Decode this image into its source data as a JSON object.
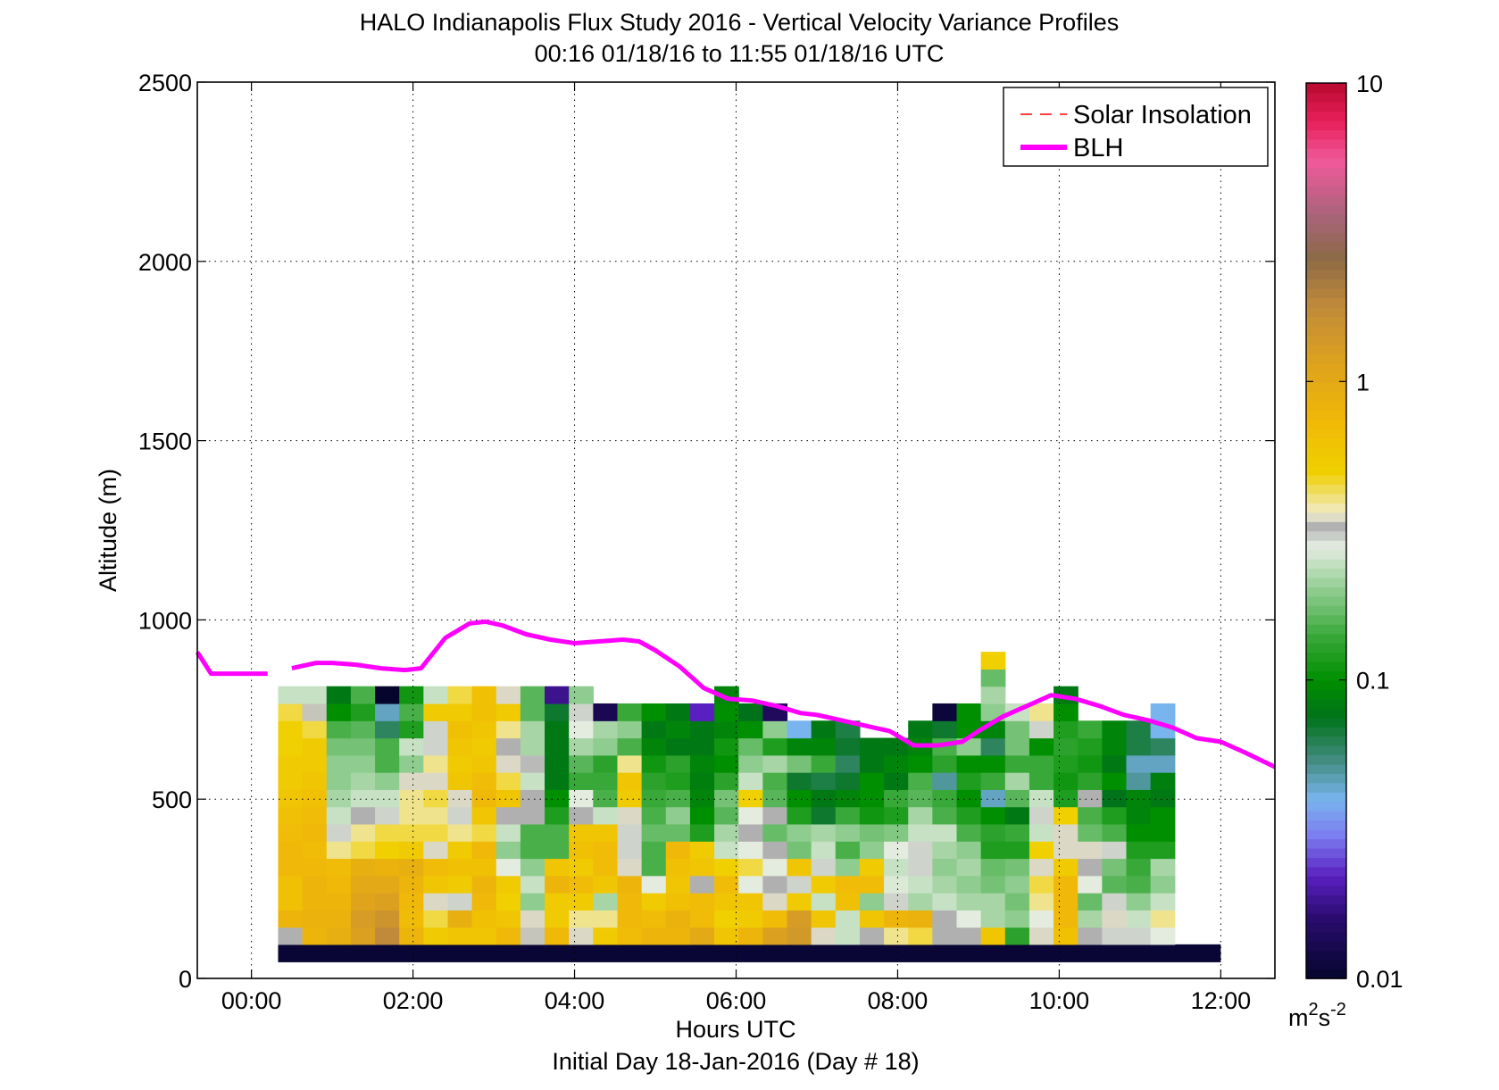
{
  "chart_data": {
    "type": "heatmap",
    "title": "HALO Indianapolis Flux Study 2016 - Vertical Velocity Variance Profiles",
    "subtitle": "00:16 01/18/16 to 11:55 01/18/16  UTC",
    "xlabel": "Hours UTC",
    "xlabel2": "Initial Day 18-Jan-2016 (Day # 18)",
    "ylabel": "Altitude (m)",
    "xlim": [
      -0.67,
      12.67
    ],
    "ylim": [
      0,
      2500
    ],
    "x_ticks": [
      {
        "value": 0,
        "label": "00:00"
      },
      {
        "value": 2,
        "label": "02:00"
      },
      {
        "value": 4,
        "label": "04:00"
      },
      {
        "value": 6,
        "label": "06:00"
      },
      {
        "value": 8,
        "label": "08:00"
      },
      {
        "value": 10,
        "label": "10:00"
      },
      {
        "value": 12,
        "label": "12:00"
      }
    ],
    "y_ticks": [
      {
        "value": 0,
        "label": "0"
      },
      {
        "value": 500,
        "label": "500"
      },
      {
        "value": 1000,
        "label": "1000"
      },
      {
        "value": 1500,
        "label": "1500"
      },
      {
        "value": 2000,
        "label": "2000"
      },
      {
        "value": 2500,
        "label": "2500"
      }
    ],
    "grid": true,
    "legend_position": "top-right",
    "legend": [
      {
        "label": "Solar Insolation",
        "color": "#ff0000",
        "style": "dashed"
      },
      {
        "label": "BLH",
        "color": "#ff00ff",
        "style": "solid"
      }
    ],
    "colorbar": {
      "scale": "log",
      "range": [
        0.01,
        10
      ],
      "ticks": [
        {
          "value": 0.01,
          "label": "0.01"
        },
        {
          "value": 0.1,
          "label": "0.1"
        },
        {
          "value": 1,
          "label": "1"
        },
        {
          "value": 10,
          "label": "10"
        }
      ],
      "unit_base": "m",
      "unit_sup1": "2",
      "unit_mid": "s",
      "unit_sup2": "-2",
      "stops": [
        {
          "v": 0.01,
          "c": "#05052e"
        },
        {
          "v": 0.016,
          "c": "#2a0c6e"
        },
        {
          "v": 0.022,
          "c": "#5a1fc0"
        },
        {
          "v": 0.03,
          "c": "#7c7cf0"
        },
        {
          "v": 0.04,
          "c": "#78b4ee"
        },
        {
          "v": 0.055,
          "c": "#3f8a7a"
        },
        {
          "v": 0.075,
          "c": "#00731a"
        },
        {
          "v": 0.1,
          "c": "#008f00"
        },
        {
          "v": 0.14,
          "c": "#38a838"
        },
        {
          "v": 0.2,
          "c": "#8fcc8f"
        },
        {
          "v": 0.28,
          "c": "#e4ece0"
        },
        {
          "v": 0.33,
          "c": "#b0b0b0"
        },
        {
          "v": 0.36,
          "c": "#f0eccf"
        },
        {
          "v": 0.5,
          "c": "#f0d000"
        },
        {
          "v": 0.75,
          "c": "#f0b808"
        },
        {
          "v": 1.2,
          "c": "#dca020"
        },
        {
          "v": 1.8,
          "c": "#c08a3a"
        },
        {
          "v": 2.6,
          "c": "#8c6a46"
        },
        {
          "v": 3.6,
          "c": "#a8647a"
        },
        {
          "v": 5.5,
          "c": "#f05a9a"
        },
        {
          "v": 7.5,
          "c": "#e81e5a"
        },
        {
          "v": 10,
          "c": "#b80a30"
        }
      ]
    },
    "heatmap": {
      "x_start": 0.33,
      "column_width": 0.3,
      "y_start": 95,
      "row_height": 48,
      "value_unit": "m2 s-2",
      "floor_band": {
        "y0": 45,
        "y1": 95,
        "x0": 0.33,
        "x1": 12,
        "value": 0.0105
      },
      "columns": [
        [
          0.33,
          0.8,
          0.65,
          0.65,
          0.75,
          0.75,
          0.7,
          0.65,
          0.6,
          0.55,
          0.55,
          0.5,
          0.5,
          0.45,
          0.25
        ],
        [
          0.8,
          0.85,
          0.8,
          0.8,
          0.75,
          0.7,
          0.75,
          0.7,
          0.65,
          0.6,
          0.55,
          0.55,
          0.45,
          0.34,
          0.25
        ],
        [
          0.9,
          0.85,
          0.8,
          0.75,
          0.7,
          0.4,
          0.3,
          0.25,
          0.22,
          0.2,
          0.2,
          0.18,
          0.15,
          0.1,
          0.08
        ],
        [
          1.2,
          1.3,
          1.1,
          1.0,
          0.9,
          0.45,
          0.4,
          0.33,
          0.25,
          0.22,
          0.2,
          0.18,
          0.16,
          0.12,
          0.15
        ],
        [
          1.8,
          1.5,
          1.2,
          1.0,
          0.85,
          0.5,
          0.45,
          0.3,
          0.25,
          0.2,
          0.15,
          0.15,
          0.06,
          0.045,
          0.009
        ],
        [
          0.8,
          0.7,
          0.75,
          0.8,
          0.9,
          0.55,
          0.45,
          0.4,
          0.4,
          0.35,
          0.2,
          0.25,
          0.12,
          0.15,
          0.11
        ],
        [
          0.55,
          0.45,
          0.35,
          0.6,
          0.7,
          0.35,
          0.45,
          0.4,
          0.45,
          0.35,
          0.4,
          0.3,
          0.3,
          0.55,
          0.25
        ],
        [
          0.6,
          0.9,
          0.3,
          0.55,
          0.65,
          0.55,
          0.4,
          0.3,
          0.35,
          0.6,
          0.55,
          0.6,
          0.65,
          0.55,
          0.45
        ],
        [
          0.6,
          0.65,
          0.75,
          0.8,
          0.65,
          0.75,
          0.45,
          0.6,
          0.75,
          0.7,
          0.6,
          0.55,
          0.6,
          0.65,
          0.65
        ],
        [
          0.75,
          0.6,
          0.5,
          0.55,
          0.28,
          0.2,
          0.25,
          0.33,
          0.6,
          0.45,
          0.35,
          0.33,
          0.4,
          0.55,
          0.35
        ],
        [
          0.34,
          0.35,
          0.2,
          0.25,
          0.2,
          0.15,
          0.15,
          0.33,
          0.33,
          0.25,
          0.32,
          0.22,
          0.22,
          0.16,
          0.16
        ],
        [
          0.75,
          0.55,
          0.55,
          0.8,
          0.6,
          0.15,
          0.15,
          0.12,
          0.1,
          0.08,
          0.08,
          0.08,
          0.08,
          0.07,
          0.018
        ],
        [
          0.35,
          0.4,
          0.55,
          0.7,
          0.55,
          0.65,
          0.6,
          0.33,
          0.28,
          0.14,
          0.16,
          0.22,
          0.28,
          0.3,
          0.2
        ],
        [
          0.55,
          0.4,
          0.22,
          0.6,
          0.7,
          0.7,
          0.6,
          0.25,
          0.15,
          0.14,
          0.13,
          0.2,
          0.22,
          0.013
        ],
        [
          0.7,
          0.75,
          0.75,
          0.8,
          0.35,
          0.3,
          0.3,
          0.35,
          0.55,
          0.6,
          0.4,
          0.15,
          0.2,
          0.14
        ],
        [
          0.8,
          0.7,
          0.55,
          0.28,
          0.15,
          0.15,
          0.17,
          0.15,
          0.14,
          0.13,
          0.11,
          0.09,
          0.08,
          0.1
        ],
        [
          0.8,
          0.85,
          0.65,
          0.6,
          0.65,
          0.75,
          0.17,
          0.2,
          0.15,
          0.12,
          0.13,
          0.08,
          0.09,
          0.08
        ],
        [
          1.0,
          0.7,
          0.7,
          0.33,
          0.6,
          0.55,
          0.12,
          0.1,
          0.09,
          0.085,
          0.09,
          0.08,
          0.08,
          0.022
        ],
        [
          0.6,
          0.5,
          0.6,
          0.7,
          0.5,
          0.25,
          0.22,
          0.16,
          0.18,
          0.13,
          0.1,
          0.11,
          0.09,
          0.1,
          0.09
        ],
        [
          0.8,
          0.55,
          0.6,
          0.28,
          0.45,
          0.28,
          0.33,
          0.28,
          0.5,
          0.25,
          0.2,
          0.17,
          0.1,
          0.075
        ],
        [
          1.2,
          0.7,
          0.35,
          0.33,
          0.28,
          0.33,
          0.17,
          0.33,
          0.16,
          0.15,
          0.22,
          0.12,
          0.2,
          0.014
        ],
        [
          1.4,
          1.3,
          0.55,
          0.3,
          0.6,
          0.18,
          0.2,
          0.12,
          0.1,
          0.07,
          0.18,
          0.09,
          0.04
        ],
        [
          0.35,
          0.6,
          0.25,
          0.55,
          0.3,
          0.25,
          0.22,
          0.07,
          0.08,
          0.065,
          0.14,
          0.09,
          0.08
        ],
        [
          0.25,
          0.25,
          0.65,
          0.7,
          0.2,
          0.15,
          0.2,
          0.14,
          0.09,
          0.07,
          0.06,
          0.07,
          0.065
        ],
        [
          0.33,
          0.6,
          0.2,
          0.7,
          0.55,
          0.2,
          0.18,
          0.11,
          0.1,
          0.1,
          0.08,
          0.08
        ],
        [
          0.4,
          0.8,
          0.3,
          0.27,
          0.25,
          0.28,
          0.19,
          0.12,
          0.14,
          0.08,
          0.09,
          0.08
        ],
        [
          0.45,
          0.85,
          0.22,
          0.25,
          0.3,
          0.3,
          0.25,
          0.22,
          0.16,
          0.15,
          0.1,
          0.09,
          0.08
        ],
        [
          0.33,
          0.33,
          0.25,
          0.22,
          0.2,
          0.22,
          0.25,
          0.15,
          0.14,
          0.05,
          0.13,
          0.15,
          0.07,
          0.011
        ],
        [
          0.33,
          0.28,
          0.22,
          0.2,
          0.22,
          0.2,
          0.15,
          0.12,
          0.1,
          0.12,
          0.1,
          0.2,
          0.1,
          0.1
        ],
        [
          0.6,
          0.22,
          0.22,
          0.18,
          0.17,
          0.12,
          0.13,
          0.1,
          0.045,
          0.14,
          0.1,
          0.06,
          0.09,
          0.2,
          0.22,
          0.17,
          0.5
        ],
        [
          0.13,
          0.2,
          0.18,
          0.2,
          0.18,
          0.12,
          0.14,
          0.08,
          0.16,
          0.22,
          0.14,
          0.18,
          0.18,
          0.25
        ],
        [
          0.35,
          0.28,
          0.4,
          0.45,
          0.35,
          0.5,
          0.25,
          0.3,
          0.25,
          0.14,
          0.14,
          0.1,
          0.3,
          0.4
        ],
        [
          0.65,
          0.75,
          0.75,
          0.75,
          0.55,
          0.35,
          0.35,
          0.5,
          0.12,
          0.11,
          0.12,
          0.13,
          0.12,
          0.1,
          0.08
        ],
        [
          0.33,
          0.22,
          0.17,
          0.28,
          0.33,
          0.35,
          0.17,
          0.15,
          0.33,
          0.13,
          0.11,
          0.12,
          0.14
        ],
        [
          0.3,
          0.35,
          0.3,
          0.16,
          0.18,
          0.3,
          0.15,
          0.12,
          0.075,
          0.1,
          0.08,
          0.09,
          0.09
        ],
        [
          0.3,
          0.25,
          0.2,
          0.15,
          0.14,
          0.12,
          0.1,
          0.09,
          0.09,
          0.05,
          0.045,
          0.065,
          0.065
        ],
        [
          0.28,
          0.4,
          0.25,
          0.2,
          0.22,
          0.12,
          0.1,
          0.1,
          0.08,
          0.085,
          0.045,
          0.06,
          0.04,
          0.04
        ]
      ]
    },
    "series": [
      {
        "name": "BLH",
        "color": "#ff00ff",
        "x": [
          -0.67,
          -0.5,
          -0.3,
          0.2
        ],
        "y": [
          910,
          850,
          850,
          850
        ]
      },
      {
        "name": "BLH",
        "color": "#ff00ff",
        "x": [
          0.5,
          0.8,
          1.0,
          1.3,
          1.6,
          1.9,
          2.1,
          2.4,
          2.7,
          2.9,
          3.1,
          3.4,
          3.7,
          4.0,
          4.3,
          4.6,
          4.8,
          5.0,
          5.3,
          5.6,
          5.9,
          6.2,
          6.5,
          6.8,
          7.0,
          7.3,
          7.6,
          7.9,
          8.2,
          8.5,
          8.8,
          9.0,
          9.3,
          9.6,
          9.9,
          10.2,
          10.5,
          10.8,
          11.1,
          11.4,
          11.7,
          12.0,
          12.3,
          12.67
        ],
        "y": [
          865,
          880,
          880,
          875,
          865,
          860,
          865,
          950,
          990,
          995,
          985,
          960,
          945,
          935,
          940,
          945,
          940,
          915,
          870,
          810,
          780,
          775,
          760,
          740,
          735,
          720,
          705,
          690,
          650,
          650,
          660,
          690,
          730,
          760,
          790,
          780,
          760,
          735,
          720,
          700,
          670,
          660,
          630,
          590
        ]
      }
    ]
  }
}
